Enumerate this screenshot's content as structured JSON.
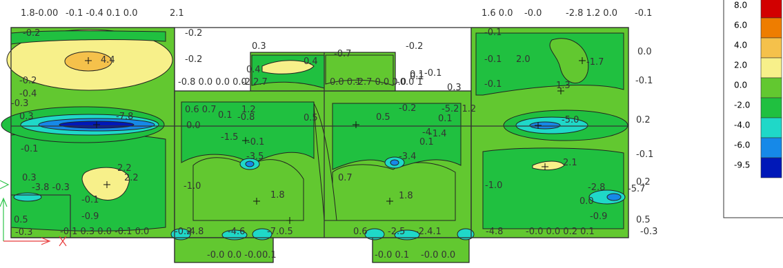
{
  "chart_data": {
    "type": "heatmap",
    "legend": {
      "placement": "top-right",
      "labels": [
        "8.0",
        "6.0",
        "4.0",
        "2.0",
        "0.0",
        "-2.0",
        "-4.0",
        "-6.0",
        "-9.5"
      ],
      "colors": [
        "#d20000",
        "#ee7d00",
        "#f5c14b",
        "#f7f08a",
        "#62c830",
        "#20c040",
        "#1fd8c8",
        "#1689e8",
        "#0018b8"
      ]
    },
    "extremes": {
      "max": "4.4",
      "min": "-7.8"
    },
    "labels": [
      {
        "text": "1.8-0.00",
        "value": 1.8
      },
      {
        "text": "-0.1 -0.4 0.1 0.0",
        "value": -0.1
      },
      {
        "text": "2.1",
        "value": 2.1
      },
      {
        "text": "-0.2",
        "value": -0.2
      },
      {
        "text": "-0.2",
        "value": -0.2
      },
      {
        "text": "-0.2",
        "value": -0.2
      },
      {
        "text": "4.4",
        "value": 4.4
      },
      {
        "text": "-0.2",
        "value": -0.2
      },
      {
        "text": "-0.4",
        "value": -0.4
      },
      {
        "text": "-0.3",
        "value": -0.3
      },
      {
        "text": "0.3",
        "value": 0.3
      },
      {
        "text": "-7.8",
        "value": -7.8
      },
      {
        "text": "-0.1",
        "value": -0.1
      },
      {
        "text": "2.2",
        "value": 2.2
      },
      {
        "text": "2.2",
        "value": 2.2
      },
      {
        "text": "0.3",
        "value": 0.3
      },
      {
        "text": "-3.8 -0.3",
        "value": -3.8
      },
      {
        "text": "-0.1",
        "value": -0.1
      },
      {
        "text": "-0.9",
        "value": -0.9
      },
      {
        "text": "0.5",
        "value": 0.5
      },
      {
        "text": "-0.3",
        "value": -0.3
      },
      {
        "text": "-0.1 0.3 0.0 -0.1 0.0",
        "value": -0.1
      },
      {
        "text": "-0.2",
        "value": -0.2
      },
      {
        "text": "0.3",
        "value": 0.3
      },
      {
        "text": "-0.7",
        "value": -0.7
      },
      {
        "text": "-0.2",
        "value": -0.2
      },
      {
        "text": "0.4",
        "value": 0.4
      },
      {
        "text": "0.4",
        "value": 0.4
      },
      {
        "text": "-0.8 0.0 0.0 0.0",
        "value": -0.8
      },
      {
        "text": "-2.2.7",
        "value": -2.2
      },
      {
        "text": "0.0 0.1",
        "value": 0.0
      },
      {
        "text": "-2.7 0.0 0.0",
        "value": -2.7
      },
      {
        "text": "-0.0 1",
        "value": -0.0
      },
      {
        "text": "-0.1",
        "value": -0.1
      },
      {
        "text": "0.1",
        "value": 0.1
      },
      {
        "text": "0.3",
        "value": 0.3
      },
      {
        "text": "0.6 0.7",
        "value": 0.6
      },
      {
        "text": "1.2",
        "value": 1.2
      },
      {
        "text": "0.0",
        "value": 0.0
      },
      {
        "text": "0.1",
        "value": 0.1
      },
      {
        "text": "-0.8",
        "value": -0.8
      },
      {
        "text": "0.5",
        "value": 0.5
      },
      {
        "text": "-1.5",
        "value": -1.5
      },
      {
        "text": "-0.1",
        "value": -0.1
      },
      {
        "text": "-3.5",
        "value": -3.5
      },
      {
        "text": "-1.0",
        "value": -1.0
      },
      {
        "text": "1.8",
        "value": 1.8
      },
      {
        "text": "-4.8",
        "value": -4.8
      },
      {
        "text": "-4.6",
        "value": -4.6
      },
      {
        "text": "-7.0.5",
        "value": -7.0
      },
      {
        "text": "-0.0 0.0 -0.0",
        "value": -0.0
      },
      {
        "text": "0.1",
        "value": 0.1
      },
      {
        "text": "0.5",
        "value": 0.5
      },
      {
        "text": "-0.2",
        "value": -0.2
      },
      {
        "text": "0.1",
        "value": 0.1
      },
      {
        "text": "-4",
        "value": -4
      },
      {
        "text": "0.1",
        "value": 0.1
      },
      {
        "text": "-1.4",
        "value": -1.4
      },
      {
        "text": "-3.4",
        "value": -3.4
      },
      {
        "text": "0.7",
        "value": 0.7
      },
      {
        "text": "1.8",
        "value": 1.8
      },
      {
        "text": "0.6",
        "value": 0.6
      },
      {
        "text": "-2.5",
        "value": -2.5
      },
      {
        "text": "-2.4.1",
        "value": -2.4
      },
      {
        "text": "-0.0 0.1",
        "value": -0.0
      },
      {
        "text": "-0.0 0.0",
        "value": -0.0
      },
      {
        "text": "1.6 0.0",
        "value": 1.6
      },
      {
        "text": "-0.0",
        "value": -0.0
      },
      {
        "text": "-2.8 1.2 0.0",
        "value": -2.8
      },
      {
        "text": "-0.1",
        "value": -0.1
      },
      {
        "text": "-0.1",
        "value": -0.1
      },
      {
        "text": "0.0",
        "value": 0.0
      },
      {
        "text": "-0.1",
        "value": -0.1
      },
      {
        "text": "2.0",
        "value": 2.0
      },
      {
        "text": "-1.7",
        "value": -1.7
      },
      {
        "text": "-0.1",
        "value": -0.1
      },
      {
        "text": "1.3",
        "value": 1.3
      },
      {
        "text": "0.1",
        "value": 0.1
      },
      {
        "text": "-0.1",
        "value": -0.1
      },
      {
        "text": "-5.2 1.2",
        "value": -5.2
      },
      {
        "text": "-5.0",
        "value": -5.0
      },
      {
        "text": "0.2",
        "value": 0.2
      },
      {
        "text": "-0.1",
        "value": -0.1
      },
      {
        "text": "2.1",
        "value": 2.1
      },
      {
        "text": "-1.0",
        "value": -1.0
      },
      {
        "text": "0.2",
        "value": 0.2
      },
      {
        "text": "-5.7",
        "value": -5.7
      },
      {
        "text": "-2.8",
        "value": -2.8
      },
      {
        "text": "0.0",
        "value": 0.0
      },
      {
        "text": "-0.9",
        "value": -0.9
      },
      {
        "text": "-4.8",
        "value": -4.8
      },
      {
        "text": "-0.0 0.0 0.2 0.1",
        "value": -0.0
      },
      {
        "text": "0.5",
        "value": 0.5
      },
      {
        "text": "-0.3",
        "value": -0.3
      }
    ]
  }
}
